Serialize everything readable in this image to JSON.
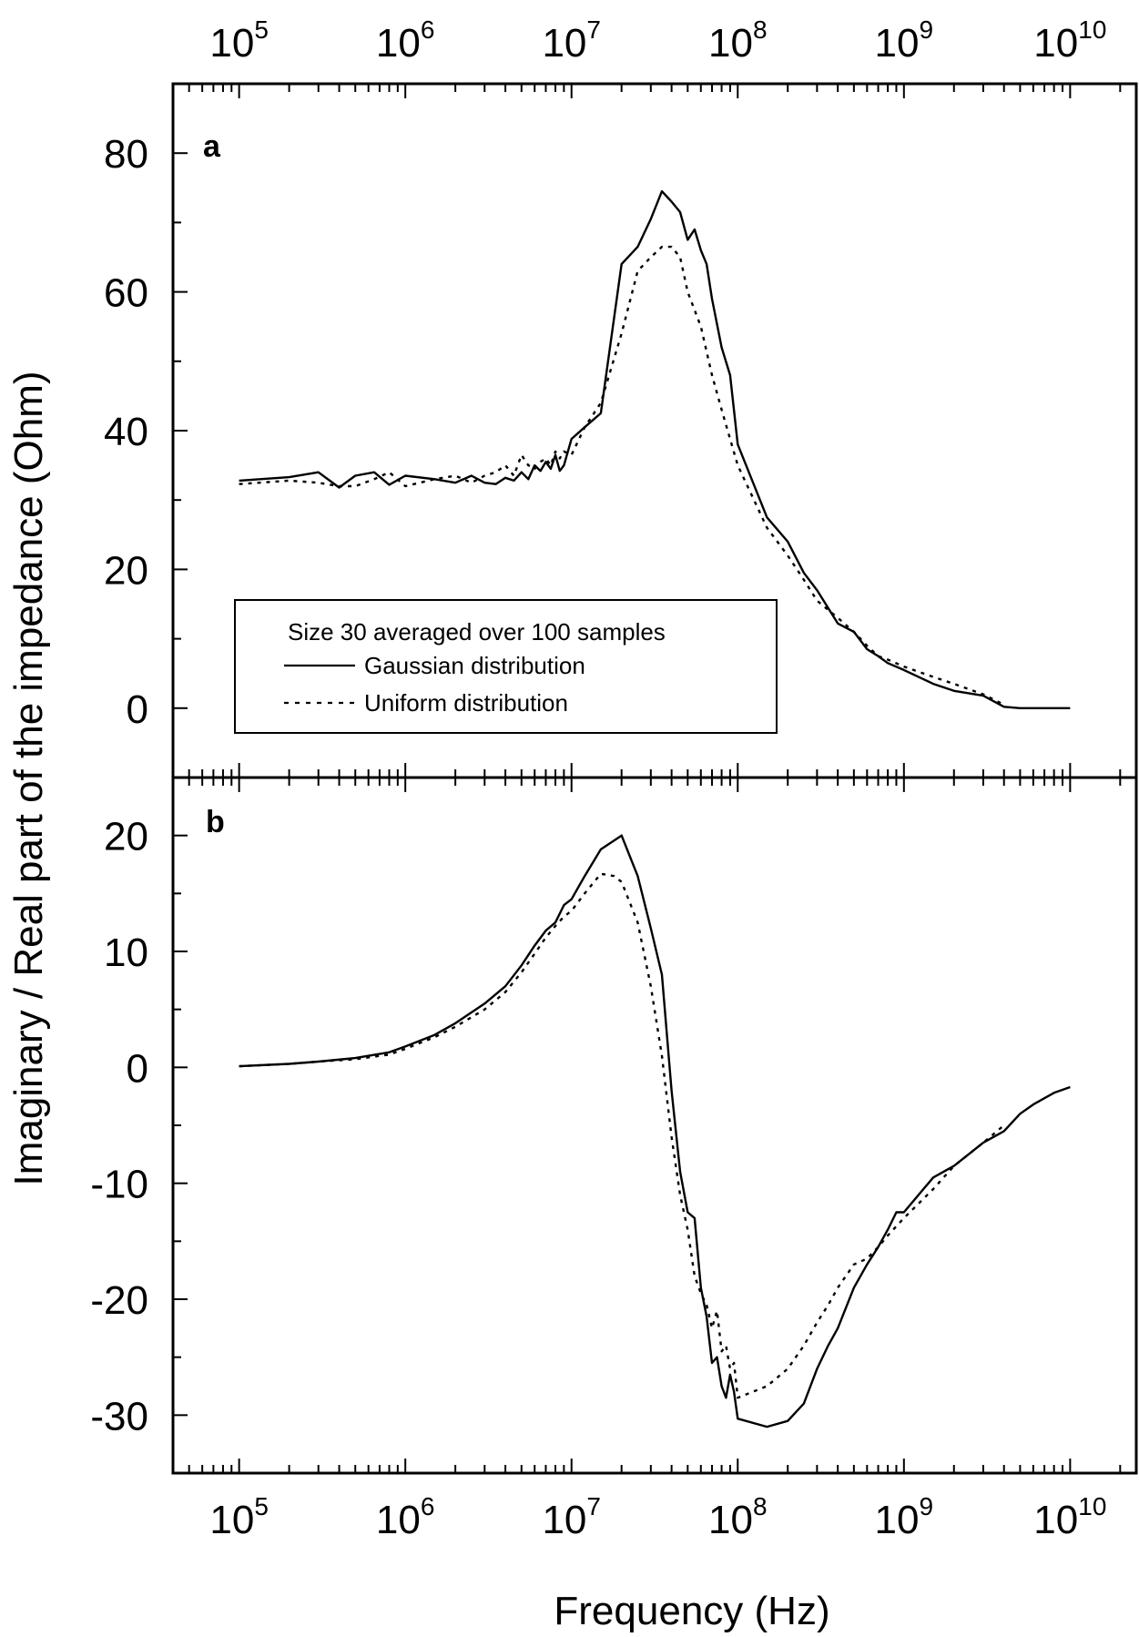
{
  "colors": {
    "line": "#000000",
    "background": "#ffffff"
  },
  "chart_data": [
    {
      "panel": "a",
      "type": "line",
      "xscale": "log",
      "xlim": [
        40000,
        25000000000
      ],
      "ylim": [
        -10,
        90
      ],
      "ylabel": "Imaginary /  Real part of the impedance (Ohm)",
      "xlabel": "Frequency (Hz)",
      "yticks": [
        "0",
        "20",
        "40",
        "60",
        "80"
      ],
      "xticks_top": [
        {
          "base": "10",
          "exp": "5"
        },
        {
          "base": "10",
          "exp": "6"
        },
        {
          "base": "10",
          "exp": "7"
        },
        {
          "base": "10",
          "exp": "8"
        },
        {
          "base": "10",
          "exp": "9"
        },
        {
          "base": "10",
          "exp": "10"
        }
      ],
      "legend": {
        "title": "Size 30  averaged over 100 samples",
        "entries": [
          "Gaussian distribution",
          "Uniform distribution"
        ],
        "placement": "lower-left"
      },
      "series": [
        {
          "name": "Gaussian distribution",
          "style": "solid",
          "x": [
            100000,
            200000,
            300000,
            400000,
            500000,
            650000,
            800000,
            1000000,
            1500000,
            2000000,
            2500000,
            3000000,
            3500000,
            4000000,
            4500000,
            5000000,
            5500000,
            6000000,
            6500000,
            7000000,
            7500000,
            8000000,
            8500000,
            9000000,
            10000000,
            12000000,
            15000000,
            20000000,
            25000000,
            30000000,
            35000000,
            40000000,
            45000000,
            50000000,
            55000000,
            60000000,
            65000000,
            70000000,
            80000000,
            90000000,
            100000000,
            150000000,
            200000000,
            250000000,
            300000000,
            400000000,
            500000000,
            600000000,
            700000000,
            800000000,
            1000000000,
            1500000000,
            2000000000,
            3000000000,
            4000000000,
            5000000000,
            10000000000
          ],
          "y": [
            32.8,
            33.3,
            34.0,
            31.8,
            33.5,
            34.0,
            32.2,
            33.5,
            33.0,
            32.5,
            33.5,
            32.5,
            32.3,
            33.2,
            32.8,
            34.0,
            33.0,
            35.0,
            34.2,
            35.5,
            34.5,
            36.5,
            34.2,
            35.0,
            38.8,
            40.5,
            42.5,
            64.0,
            66.5,
            70.5,
            74.5,
            73.0,
            71.5,
            67.5,
            69.0,
            66.0,
            64.0,
            59.0,
            52.0,
            48.0,
            38.0,
            27.5,
            24.0,
            19.5,
            17.0,
            12.2,
            11.0,
            8.5,
            7.5,
            6.5,
            5.5,
            3.5,
            2.5,
            1.8,
            0.2,
            0.0,
            0.0
          ]
        },
        {
          "name": "Uniform distribution",
          "style": "dotted",
          "x": [
            100000,
            200000,
            300000,
            400000,
            500000,
            650000,
            800000,
            1000000,
            1500000,
            2000000,
            2500000,
            3000000,
            3500000,
            4000000,
            4500000,
            5000000,
            5500000,
            6000000,
            6500000,
            7000000,
            7500000,
            8000000,
            8500000,
            9000000,
            10000000,
            12000000,
            15000000,
            20000000,
            25000000,
            30000000,
            35000000,
            40000000,
            45000000,
            50000000,
            60000000,
            70000000,
            80000000,
            100000000,
            150000000,
            200000000,
            250000000,
            300000000,
            400000000,
            500000000,
            600000000,
            700000000,
            800000000,
            1000000000,
            1500000000,
            2000000000,
            3000000000,
            4000000000
          ],
          "y": [
            32.3,
            32.8,
            32.5,
            32.0,
            32.0,
            33.0,
            34.0,
            32.0,
            33.0,
            33.5,
            32.5,
            33.5,
            34.0,
            35.0,
            33.5,
            36.5,
            35.0,
            34.5,
            35.5,
            36.0,
            35.0,
            37.0,
            36.0,
            37.0,
            36.5,
            40.5,
            44.0,
            54.0,
            63.0,
            65.0,
            66.5,
            66.5,
            65.0,
            60.0,
            55.0,
            48.0,
            43.0,
            35.0,
            26.0,
            22.0,
            18.5,
            15.5,
            13.0,
            11.0,
            9.0,
            7.5,
            7.0,
            6.0,
            4.5,
            3.5,
            2.0,
            0.5
          ]
        }
      ]
    },
    {
      "panel": "b",
      "type": "line",
      "xscale": "log",
      "xlim": [
        40000,
        25000000000
      ],
      "ylim": [
        -35,
        25
      ],
      "xlabel": "Frequency (Hz)",
      "yticks": [
        "-30",
        "-20",
        "-10",
        "0",
        "10",
        "20"
      ],
      "xticks_bottom": [
        {
          "base": "10",
          "exp": "5"
        },
        {
          "base": "10",
          "exp": "6"
        },
        {
          "base": "10",
          "exp": "7"
        },
        {
          "base": "10",
          "exp": "8"
        },
        {
          "base": "10",
          "exp": "9"
        },
        {
          "base": "10",
          "exp": "10"
        }
      ],
      "series": [
        {
          "name": "Gaussian distribution",
          "style": "solid",
          "x": [
            100000,
            200000,
            300000,
            500000,
            800000,
            1000000,
            1500000,
            2000000,
            3000000,
            4000000,
            5000000,
            6000000,
            7000000,
            8000000,
            9000000,
            10000000,
            12000000,
            15000000,
            20000000,
            25000000,
            30000000,
            35000000,
            40000000,
            45000000,
            50000000,
            55000000,
            60000000,
            65000000,
            70000000,
            75000000,
            80000000,
            85000000,
            90000000,
            95000000,
            100000000,
            150000000,
            200000000,
            250000000,
            300000000,
            350000000,
            400000000,
            500000000,
            600000000,
            700000000,
            800000000,
            900000000,
            1000000000,
            1500000000,
            2000000000,
            3000000000,
            4000000000,
            5000000000,
            6000000000,
            8000000000,
            10000000000
          ],
          "y": [
            0.1,
            0.3,
            0.5,
            0.8,
            1.3,
            1.8,
            2.8,
            3.8,
            5.5,
            7.0,
            8.8,
            10.5,
            11.8,
            12.5,
            14.0,
            14.5,
            16.5,
            18.8,
            20.0,
            16.5,
            12.0,
            8.0,
            -2.0,
            -9.0,
            -12.5,
            -13.0,
            -19.0,
            -21.5,
            -25.5,
            -25.0,
            -27.5,
            -28.5,
            -26.5,
            -28.0,
            -30.3,
            -31.0,
            -30.5,
            -29.0,
            -26.0,
            -24.0,
            -22.5,
            -19.0,
            -17.0,
            -15.5,
            -14.0,
            -12.5,
            -12.5,
            -9.5,
            -8.5,
            -6.5,
            -5.5,
            -4.0,
            -3.2,
            -2.2,
            -1.7
          ]
        },
        {
          "name": "Uniform distribution",
          "style": "dotted",
          "x": [
            100000,
            200000,
            300000,
            500000,
            800000,
            1000000,
            1500000,
            2000000,
            3000000,
            4000000,
            5000000,
            6000000,
            7000000,
            8000000,
            9000000,
            10000000,
            12000000,
            15000000,
            18000000,
            20000000,
            25000000,
            30000000,
            35000000,
            40000000,
            45000000,
            50000000,
            55000000,
            60000000,
            65000000,
            70000000,
            75000000,
            80000000,
            85000000,
            90000000,
            95000000,
            100000000,
            150000000,
            200000000,
            250000000,
            300000000,
            350000000,
            400000000,
            500000000,
            600000000,
            700000000,
            800000000,
            1000000000,
            1500000000,
            2000000000,
            3000000000,
            4000000000
          ],
          "y": [
            0.1,
            0.3,
            0.5,
            0.7,
            1.1,
            1.6,
            2.6,
            3.5,
            5.0,
            6.5,
            8.2,
            9.8,
            11.2,
            12.2,
            13.0,
            13.5,
            15.0,
            16.7,
            16.5,
            16.0,
            12.5,
            7.0,
            1.0,
            -6.0,
            -11.0,
            -14.0,
            -18.0,
            -19.5,
            -20.5,
            -22.5,
            -21.0,
            -24.5,
            -24.0,
            -26.0,
            -25.5,
            -28.5,
            -27.5,
            -26.0,
            -24.0,
            -22.0,
            -20.5,
            -19.0,
            -17.0,
            -16.5,
            -15.5,
            -14.5,
            -13.0,
            -10.5,
            -8.5,
            -6.5,
            -5.0
          ]
        }
      ]
    }
  ]
}
